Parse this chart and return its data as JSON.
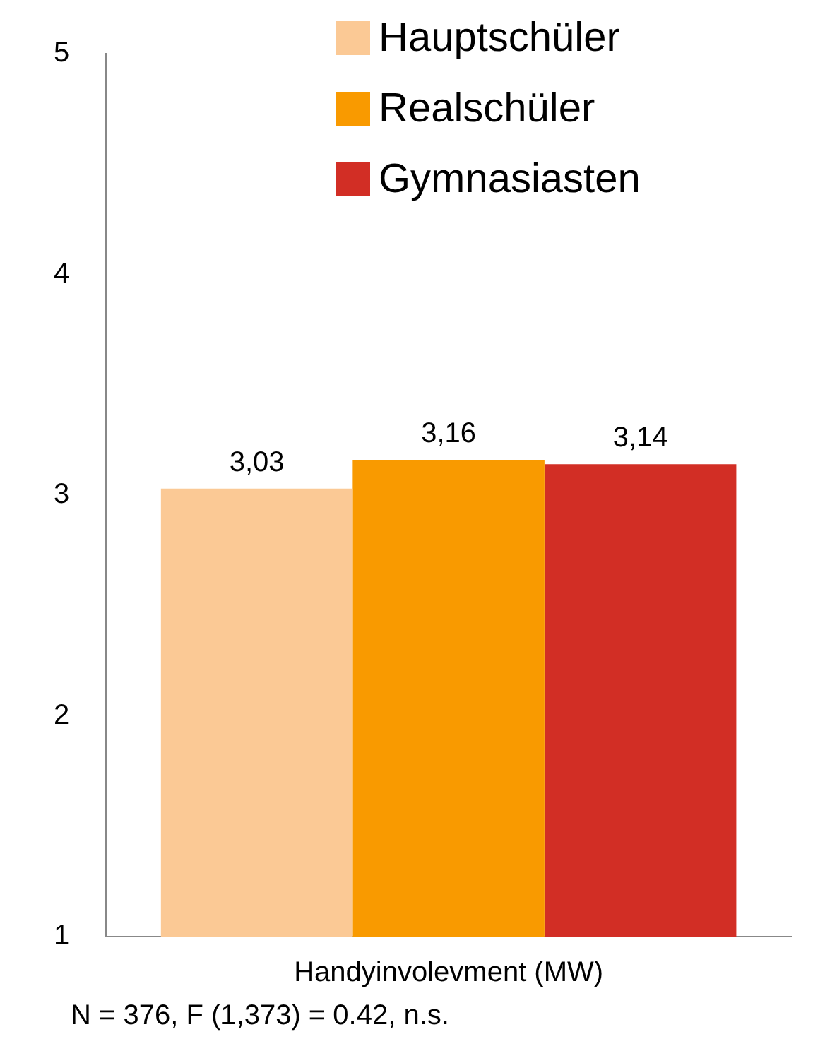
{
  "chart_data": {
    "type": "bar",
    "xlabel": "Handyinvolevment (MW)",
    "categories": [
      null
    ],
    "series": [
      {
        "name": "Hauptschüler",
        "color": "#fbc995",
        "values": [
          3.03
        ],
        "value_labels": [
          "3,03"
        ]
      },
      {
        "name": "Realschüler",
        "color": "#f99a00",
        "values": [
          3.16
        ],
        "value_labels": [
          "3,16"
        ]
      },
      {
        "name": "Gymnasiasten",
        "color": "#d22e25",
        "values": [
          3.14
        ],
        "value_labels": [
          "3,14"
        ]
      }
    ],
    "ylim": [
      1,
      5
    ],
    "yticks": [
      1,
      2,
      3,
      4,
      5
    ],
    "grid": false,
    "legend": "top right",
    "annotations": [
      "N = 376, F (1,373) = 0.42, n.s."
    ]
  }
}
